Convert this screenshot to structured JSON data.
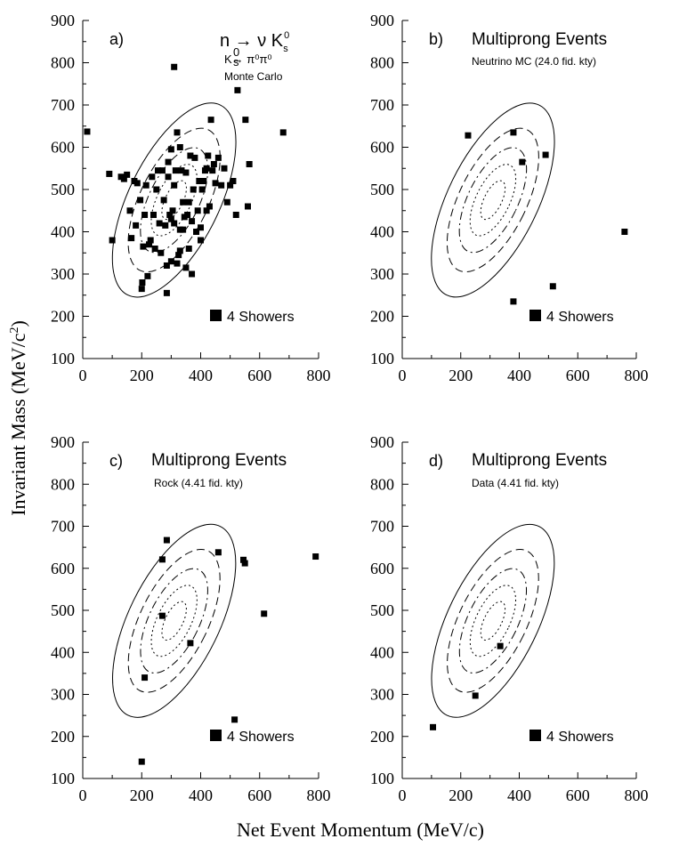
{
  "colors": {
    "ink": "#000000",
    "background": "#ffffff"
  },
  "chart_data": {
    "type": "scatter",
    "xlabel": "Net Event Momentum (MeV/c)",
    "ylabel_main": "Invariant Mass (MeV/c",
    "ylabel_sup": "2",
    "ylabel_tail": ")",
    "xlim": [
      0,
      800
    ],
    "ylim": [
      100,
      900
    ],
    "x_ticks": [
      "0",
      "200",
      "400",
      "600",
      "800"
    ],
    "y_ticks": [
      "100",
      "200",
      "300",
      "400",
      "500",
      "600",
      "700",
      "800",
      "900"
    ],
    "contour_center": {
      "x": 310,
      "y": 475
    },
    "contour_levels": [
      {
        "style": "solid",
        "dx": 280,
        "dy": 250
      },
      {
        "style": "dashed",
        "dx": 210,
        "dy": 185
      },
      {
        "style": "dashdot",
        "dx": 155,
        "dy": 135
      },
      {
        "style": "dotted",
        "dx": 105,
        "dy": 92
      },
      {
        "style": "dotted",
        "dx": 55,
        "dy": 50
      }
    ],
    "panels": [
      {
        "id": "a",
        "label": "a)",
        "reaction": "n → ν K",
        "reaction_sup": "0",
        "reaction_sub": "s",
        "decay": "K→ π⁰π⁰",
        "decay_sup": "0",
        "decay_sub": "s",
        "source": "Monte Carlo",
        "legend": "4 Showers",
        "x": [
          15,
          310,
          525,
          552,
          680,
          90,
          100,
          130,
          140,
          150,
          160,
          165,
          175,
          180,
          185,
          195,
          200,
          202,
          205,
          210,
          215,
          220,
          225,
          230,
          235,
          240,
          245,
          250,
          255,
          260,
          265,
          270,
          275,
          280,
          285,
          290,
          290,
          295,
          300,
          300,
          305,
          310,
          310,
          315,
          320,
          320,
          325,
          330,
          330,
          335,
          340,
          340,
          345,
          350,
          350,
          355,
          360,
          360,
          365,
          370,
          370,
          375,
          380,
          385,
          390,
          395,
          400,
          400,
          405,
          410,
          415,
          420,
          420,
          425,
          430,
          435,
          440,
          445,
          450,
          460,
          470,
          480,
          490,
          500,
          510,
          520,
          560,
          565,
          285,
          330,
          300
        ],
        "y": [
          637,
          790,
          735,
          665,
          635,
          537,
          380,
          530,
          525,
          535,
          450,
          385,
          520,
          415,
          515,
          475,
          265,
          280,
          365,
          440,
          510,
          295,
          370,
          380,
          530,
          440,
          360,
          500,
          545,
          420,
          350,
          545,
          475,
          415,
          320,
          530,
          565,
          440,
          330,
          430,
          450,
          510,
          420,
          545,
          635,
          325,
          345,
          355,
          405,
          545,
          470,
          405,
          435,
          540,
          315,
          440,
          360,
          470,
          580,
          300,
          425,
          500,
          575,
          400,
          450,
          520,
          380,
          410,
          500,
          520,
          545,
          550,
          450,
          580,
          460,
          665,
          545,
          560,
          515,
          575,
          510,
          550,
          470,
          510,
          520,
          440,
          460,
          560,
          255,
          600,
          595
        ]
      },
      {
        "id": "b",
        "label": "b)",
        "heading": "Multiprong Events",
        "subheading": "Neutrino MC (24.0 fid. kty)",
        "legend": "4 Showers",
        "x": [
          225,
          380,
          410,
          490,
          380,
          515,
          760
        ],
        "y": [
          628,
          635,
          565,
          582,
          235,
          271,
          400
        ]
      },
      {
        "id": "c",
        "label": "c)",
        "heading": "Multiprong Events",
        "subheading": "Rock (4.41 fid. kty)",
        "legend": "4 Showers",
        "x": [
          285,
          270,
          460,
          545,
          550,
          790,
          270,
          365,
          615,
          210,
          515,
          200
        ],
        "y": [
          667,
          621,
          638,
          620,
          612,
          628,
          487,
          422,
          492,
          340,
          240,
          140
        ]
      },
      {
        "id": "d",
        "label": "d)",
        "heading": "Multiprong Events",
        "subheading": "Data (4.41 fid. kty)",
        "legend": "4 Showers",
        "x": [
          335,
          250,
          105
        ],
        "y": [
          415,
          297,
          222
        ]
      }
    ]
  }
}
